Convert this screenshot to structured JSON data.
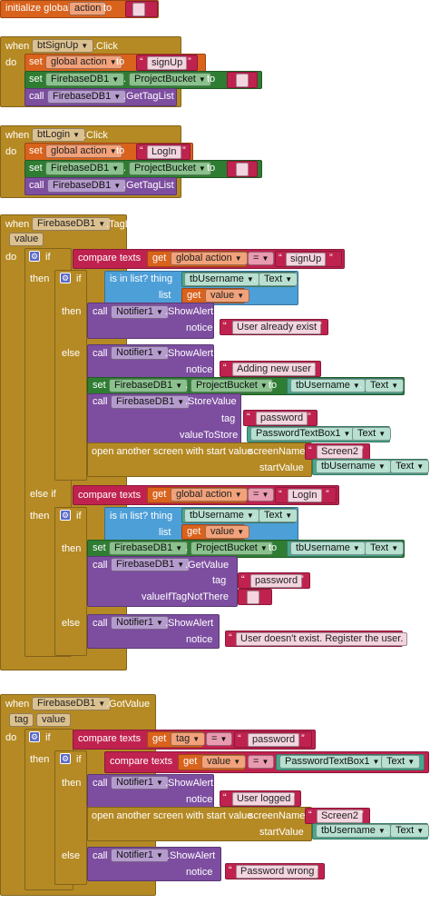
{
  "kw": {
    "initialize_global": "initialize global",
    "to": "to",
    "when": "when",
    "do": "do",
    "set": "set",
    "call": "call",
    "if": "if",
    "then": "then",
    "else": "else",
    "else_if": "else if",
    "compare_texts": "compare texts",
    "get": "get",
    "is_in_list": "is in list? thing",
    "list": "list",
    "open_screen": "open another screen with start value",
    "screenName": "screenName",
    "startValue": "startValue",
    "notice": "notice",
    "tag": "tag",
    "valueToStore": "valueToStore",
    "valueIfTagNotThere": "valueIfTagNotThere",
    "eq": "=",
    "dot": "."
  },
  "vars": {
    "action": "action",
    "global_action": "global action",
    "value": "value",
    "tag": "tag"
  },
  "components": {
    "btSignUp": "btSignUp",
    "btLogin": "btLogin",
    "FirebaseDB1": "FirebaseDB1",
    "Notifier1": "Notifier1",
    "tbUsername": "tbUsername",
    "PasswordTextBox1": "PasswordTextBox1"
  },
  "events": {
    "click": ".Click",
    "taglist": ".TagList",
    "gotvalue": ".GotValue"
  },
  "props": {
    "ProjectBucket": "ProjectBucket",
    "Text": "Text"
  },
  "methods": {
    "GetTagList": ".GetTagList",
    "ShowAlert": ".ShowAlert",
    "StoreValue": ".StoreValue",
    "GetValue": ".GetValue"
  },
  "strings": {
    "signUp": "signUp",
    "LogIn": "LogIn",
    "user_exists": "User already exist",
    "adding_user": "Adding new user",
    "password": "password",
    "screen2": "Screen2",
    "user_not_exist": "User doesn't exist. Register the user.",
    "user_logged": "User logged",
    "password_wrong": "Password wrong"
  },
  "colors": {
    "event": "#b58a24",
    "variable": "#d9621c",
    "component_setter": "#2e7d32",
    "procedure_call": "#7d4ea0",
    "text": "#c0224f",
    "component_getter": "#4aa68d",
    "list": "#4d9fd8"
  }
}
